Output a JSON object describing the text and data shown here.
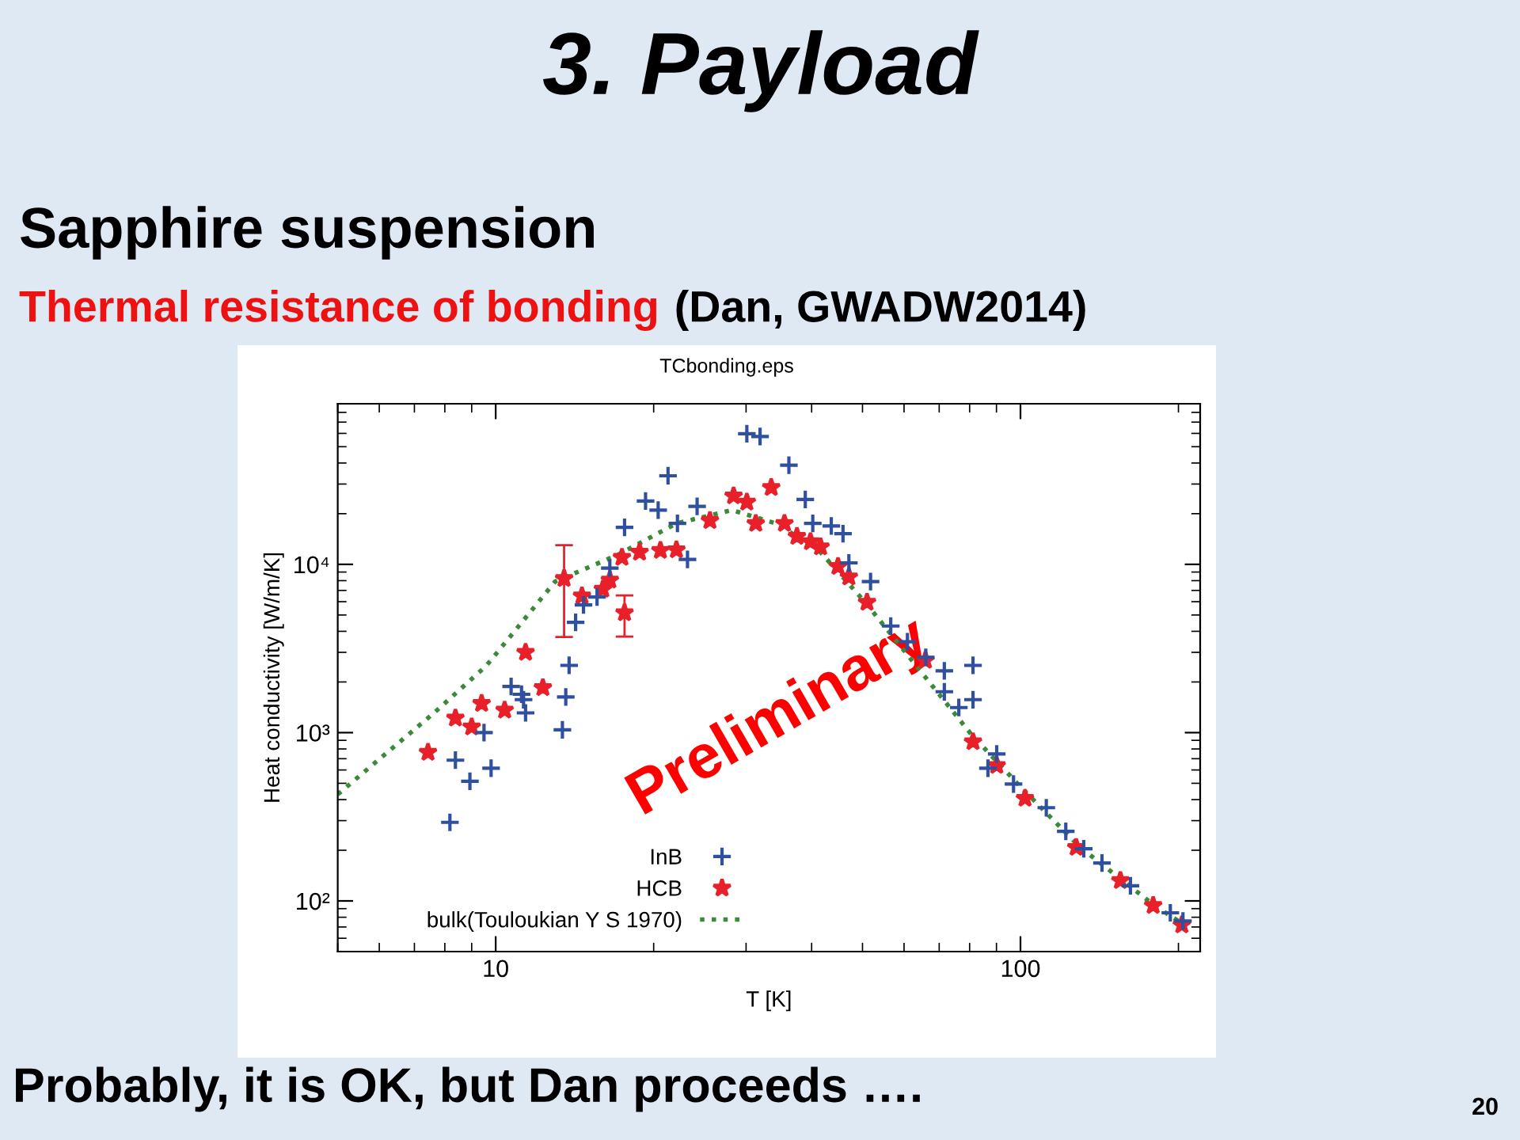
{
  "chart_data": {
    "type": "scatter",
    "title": "3. Payload",
    "subtitle": "Sapphire suspension",
    "xlabel": "T [K]",
    "ylabel": "Heat conductivity [W/m/K]",
    "log": "xy",
    "xlim": [
      5,
      220
    ],
    "ylim": [
      50,
      90000
    ],
    "xticks": [
      {
        "value": 10,
        "label": "10"
      },
      {
        "value": 100,
        "label": "100"
      }
    ],
    "yticks": [
      {
        "value": 100,
        "label": "10²"
      },
      {
        "value": 1000,
        "label": "10³"
      },
      {
        "value": 10000,
        "label": "10⁴"
      }
    ],
    "grid": false,
    "legend": "bottom left",
    "annotations": [
      "Thermal resistance of bonding",
      "(Dan, GWADW2014)",
      "TCbonding.eps",
      "Preliminary",
      "Probably, it is OK, but Dan proceeds ….",
      "20"
    ],
    "series": [
      {
        "name": "InB",
        "type": "scatter",
        "marker": "cross",
        "color": "#2f4f9f",
        "x": [
          8.18,
          8.38,
          8.93,
          9.5,
          9.8,
          10.7,
          11.2,
          11.3,
          11.4,
          13.4,
          13.6,
          13.8,
          14.2,
          14.7,
          15.6,
          16.5,
          17.6,
          19.3,
          20.4,
          21.3,
          22.2,
          23.2,
          24.2,
          30.1,
          31.9,
          36.2,
          38.9,
          40.2,
          43.6,
          45.9,
          47.1,
          51.8,
          56.6,
          60.9,
          66.0,
          71.6,
          71.6,
          76.3,
          81.2,
          81.2,
          86.7,
          90.1,
          97,
          112,
          122,
          132,
          143,
          162,
          193,
          204
        ],
        "values": [
          293,
          686,
          514,
          1000,
          615,
          1880,
          1690,
          1570,
          1310,
          1040,
          1630,
          2510,
          4520,
          5740,
          6390,
          9500,
          16600,
          23800,
          21000,
          33600,
          17500,
          10700,
          22100,
          59700,
          57500,
          38800,
          24300,
          17500,
          16900,
          15200,
          10200,
          7900,
          4300,
          3470,
          2800,
          2330,
          1750,
          1410,
          2510,
          1570,
          615,
          747,
          495,
          358,
          259,
          204,
          168,
          123,
          85,
          76
        ]
      },
      {
        "name": "HCB",
        "type": "scatter",
        "marker": "star",
        "color": "#e8202a",
        "x": [
          7.43,
          8.38,
          9.0,
          9.4,
          10.4,
          11.4,
          12.3,
          13.5,
          14.6,
          16.0,
          16.5,
          17.4,
          17.6,
          18.8,
          20.6,
          22.1,
          25.6,
          28.4,
          30.1,
          31.3,
          33.5,
          35.5,
          37.5,
          39.8,
          41.6,
          44.9,
          47.1,
          51.0,
          65.9,
          81.2,
          90.1,
          102,
          127.7,
          155,
          179,
          203
        ],
        "values": [
          764,
          1220,
          1080,
          1490,
          1360,
          3000,
          1850,
          8230,
          6490,
          7120,
          8060,
          11000,
          5150,
          11800,
          12100,
          12200,
          18200,
          25500,
          23400,
          17500,
          28600,
          17500,
          14650,
          13620,
          12700,
          9720,
          8410,
          5950,
          2690,
          883,
          638,
          407,
          208,
          132,
          94,
          72
        ],
        "errors": [
          null,
          null,
          null,
          null,
          null,
          null,
          null,
          [
            3700,
            13000
          ],
          null,
          null,
          null,
          null,
          [
            3720,
            6540
          ],
          null,
          null,
          null,
          null,
          null,
          null,
          null,
          null,
          null,
          null,
          null,
          null,
          null,
          null,
          null,
          null,
          null,
          null,
          null,
          null,
          null,
          null,
          null
        ]
      },
      {
        "name": "bulk(Touloukian Y S 1970)",
        "type": "line",
        "marker": "none",
        "line_style": "dotted",
        "color": "#3a8a3a",
        "x": [
          5,
          7.63,
          9.6,
          12.98,
          17.1,
          22.1,
          28.2,
          34.2,
          41.2,
          50.6,
          60.9,
          80.5,
          100,
          130,
          180,
          204
        ],
        "values": [
          430,
          1310,
          2500,
          7900,
          11400,
          17500,
          21000,
          17500,
          12200,
          5950,
          2900,
          981,
          477,
          208,
          94,
          73
        ]
      }
    ]
  }
}
